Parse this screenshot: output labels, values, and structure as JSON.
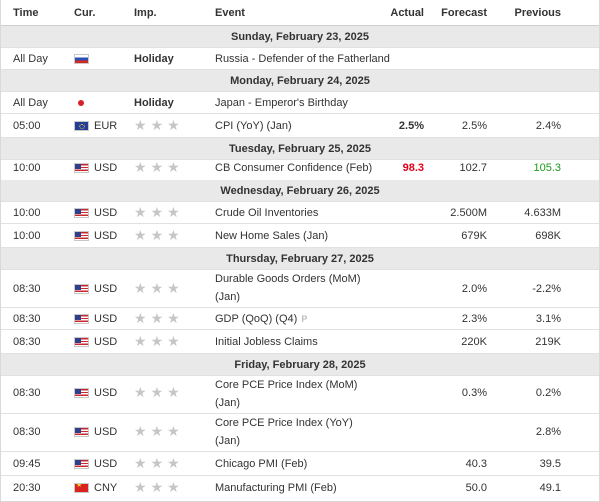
{
  "header": {
    "time": "Time",
    "currency": "Cur.",
    "importance": "Imp.",
    "event": "Event",
    "actual": "Actual",
    "forecast": "Forecast",
    "previous": "Previous"
  },
  "dates": {
    "d23": "Sunday, February 23, 2025",
    "d24": "Monday, February 24, 2025",
    "d25": "Tuesday, February 25, 2025",
    "d26": "Wednesday, February 26, 2025",
    "d27": "Thursday, February 27, 2025",
    "d28": "Friday, February 28, 2025"
  },
  "events": {
    "ru": {
      "time": "All Day",
      "flag": "russia-flag-icon",
      "holiday": "Holiday",
      "event": "Russia - Defender of the Fatherland Day"
    },
    "jp": {
      "time": "All Day",
      "flag": "japan-flag-icon",
      "holiday": "Holiday",
      "event": "Japan - Emperor's Birthday"
    },
    "cpi": {
      "time": "05:00",
      "flag": "eu-flag-icon",
      "currency": "EUR",
      "event": "CPI (YoY) (Jan)",
      "actual": "2.5%",
      "forecast": "2.5%",
      "previous": "2.4%"
    },
    "cb": {
      "time": "10:00",
      "flag": "us-flag-icon",
      "currency": "USD",
      "event": "CB Consumer Confidence (Feb)",
      "actual": "98.3",
      "forecast": "102.7",
      "previous": "105.3",
      "actual_color": "#e0001b",
      "previous_color": "#1a9b1a"
    },
    "crude": {
      "time": "10:00",
      "flag": "us-flag-icon",
      "currency": "USD",
      "event": "Crude Oil Inventories",
      "actual": "",
      "forecast": "2.500M",
      "previous": "4.633M"
    },
    "nhs": {
      "time": "10:00",
      "flag": "us-flag-icon",
      "currency": "USD",
      "event": "New Home Sales (Jan)",
      "actual": "",
      "forecast": "679K",
      "previous": "698K"
    },
    "dgo": {
      "time": "08:30",
      "flag": "us-flag-icon",
      "currency": "USD",
      "event_l1": "Durable Goods Orders (MoM)",
      "event_l2": "(Jan)",
      "actual": "",
      "forecast": "2.0%",
      "previous": "-2.2%"
    },
    "gdp": {
      "time": "08:30",
      "flag": "us-flag-icon",
      "currency": "USD",
      "event": "GDP (QoQ) (Q4)",
      "badge": "P",
      "actual": "",
      "forecast": "2.3%",
      "previous": "3.1%"
    },
    "ijc": {
      "time": "08:30",
      "flag": "us-flag-icon",
      "currency": "USD",
      "event": "Initial Jobless Claims",
      "actual": "",
      "forecast": "220K",
      "previous": "219K"
    },
    "pcem": {
      "time": "08:30",
      "flag": "us-flag-icon",
      "currency": "USD",
      "event_l1": "Core PCE Price Index (MoM)",
      "event_l2": "(Jan)",
      "actual": "",
      "forecast": "0.3%",
      "previous": "0.2%"
    },
    "pcey": {
      "time": "08:30",
      "flag": "us-flag-icon",
      "currency": "USD",
      "event_l1": "Core PCE Price Index (YoY)",
      "event_l2": "(Jan)",
      "actual": "",
      "forecast": "",
      "previous": "2.8%"
    },
    "chi": {
      "time": "09:45",
      "flag": "us-flag-icon",
      "currency": "USD",
      "event": "Chicago PMI (Feb)",
      "actual": "",
      "forecast": "40.3",
      "previous": "39.5"
    },
    "mpmi": {
      "time": "20:30",
      "flag": "china-flag-icon",
      "currency": "CNY",
      "event": "Manufacturing PMI (Feb)",
      "actual": "",
      "forecast": "50.0",
      "previous": "49.1"
    }
  },
  "importance_star": "★"
}
